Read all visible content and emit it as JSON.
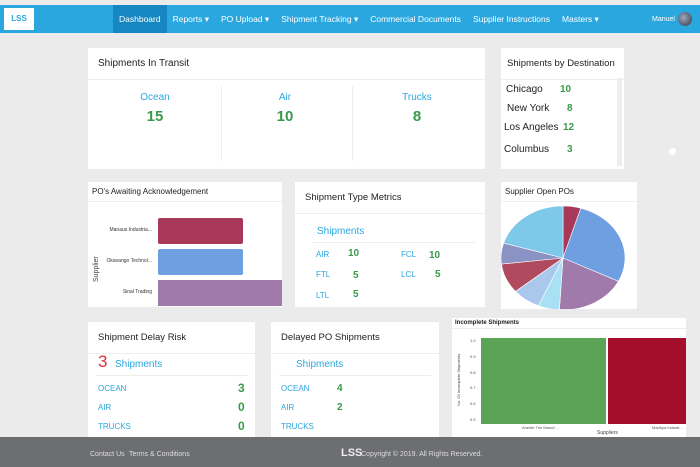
{
  "nav": {
    "logo": "LSS",
    "items": [
      "Dashboard",
      "Reports ▾",
      "PO Upload ▾",
      "Shipment Tracking ▾",
      "Commercial Documents",
      "Supplier Instructions",
      "Masters ▾"
    ],
    "user": "Manuel"
  },
  "transit": {
    "title": "Shipments In Transit",
    "items": [
      {
        "label": "Ocean",
        "value": "15"
      },
      {
        "label": "Air",
        "value": "10"
      },
      {
        "label": "Trucks",
        "value": "8"
      }
    ]
  },
  "destination": {
    "title": "Shipments by Destination",
    "items": [
      {
        "city": "Chicago",
        "value": "10"
      },
      {
        "city": "New York",
        "value": "8"
      },
      {
        "city": "Los Angeles",
        "value": "12"
      },
      {
        "city": "Columbus",
        "value": "3"
      }
    ]
  },
  "awaiting": {
    "title": "PO's Awaiting Acknowledgement",
    "ylabel": "Supplier",
    "bars": [
      {
        "label": "Manaus Industria...",
        "color": "#a8385a"
      },
      {
        "label": "Okavango Technol...",
        "color": "#6e9fe0"
      },
      {
        "label": "Sinal Trading",
        "color": "#a07aaa"
      }
    ]
  },
  "typeMetrics": {
    "title": "Shipment Type Metrics",
    "sub": "Shipments",
    "items": [
      {
        "label": "AIR",
        "value": "10"
      },
      {
        "label": "FCL",
        "value": "10"
      },
      {
        "label": "FTL",
        "value": "5"
      },
      {
        "label": "LCL",
        "value": "5"
      },
      {
        "label": "LTL",
        "value": "5"
      }
    ]
  },
  "openPOs": {
    "title": "Supplier Open POs"
  },
  "chart_data": {
    "type": "pie",
    "title": "Supplier Open POs",
    "values": [
      5,
      30,
      20,
      6,
      8,
      10,
      7,
      22
    ],
    "colors": [
      "#a8385a",
      "#6e9fe0",
      "#a07aaa",
      "#a8e0f4",
      "#a9c8ec",
      "#b04a5e",
      "#8a93c4",
      "#7ec8ea"
    ]
  },
  "delay": {
    "title": "Shipment Delay Risk",
    "count": "3",
    "sub": "Shipments",
    "items": [
      {
        "label": "OCEAN",
        "value": "3"
      },
      {
        "label": "AIR",
        "value": "0"
      },
      {
        "label": "TRUCKS",
        "value": "0"
      }
    ]
  },
  "delayed": {
    "title": "Delayed PO Shipments",
    "sub": "Shipments",
    "items": [
      {
        "label": "OCEAN",
        "value": "4"
      },
      {
        "label": "AIR",
        "value": "2"
      },
      {
        "label": "TRUCKS",
        "value": ""
      }
    ]
  },
  "incomplete": {
    "title": "Incomplete Shipments",
    "ylabel": "No. Of Incomplete Shipments",
    "xlabel": "Suppliers",
    "ticks": [
      "1.0",
      "0.9",
      "0.8",
      "0.7",
      "0.6",
      "0.5"
    ],
    "bars": [
      {
        "label": "Aravite Tire Manuf...",
        "color": "#5aa357"
      },
      {
        "label": "Madhya Industr...",
        "color": "#a50e2b"
      }
    ]
  },
  "footer": {
    "contact": "Contact Us",
    "terms": "Terms & Conditions",
    "logo": "LSS",
    "copyright": "Copyright © 2019. All Rights Reserved."
  }
}
